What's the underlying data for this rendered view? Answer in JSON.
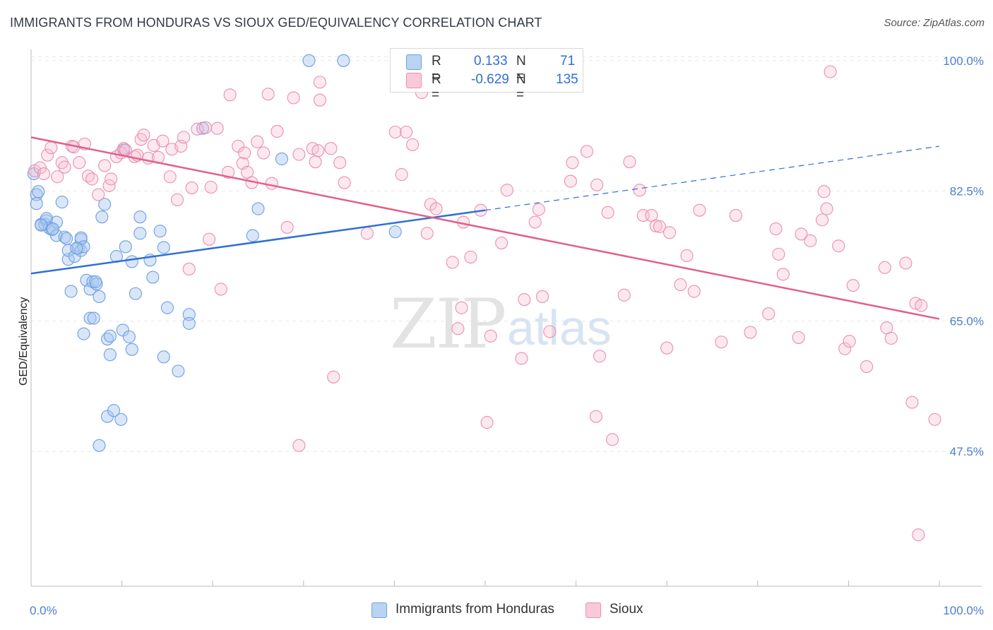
{
  "header": {
    "title": "IMMIGRANTS FROM HONDURAS VS SIOUX GED/EQUIVALENCY CORRELATION CHART",
    "source": "Source: ZipAtlas.com"
  },
  "watermark": {
    "zip": "ZIP",
    "atlas": "atlas"
  },
  "legend": {
    "r_label": "R =",
    "n_label": "N =",
    "rows": [
      {
        "name": "Immigrants from Honduras",
        "r": "0.133",
        "n": "71",
        "color": "#a9c8ef",
        "stroke": "#6f9fe0"
      },
      {
        "name": "Sioux",
        "r": "-0.629",
        "n": "135",
        "color": "#f7bcd0",
        "stroke": "#ea8fb0"
      }
    ]
  },
  "chart_data": {
    "type": "scatter",
    "title": "IMMIGRANTS FROM HONDURAS VS SIOUX GED/EQUIVALENCY CORRELATION CHART",
    "xlabel": "",
    "ylabel": "GED/Equivalency",
    "xlim": [
      0,
      100
    ],
    "ylim": [
      29.4,
      101.5
    ],
    "x_tick_labels": [
      "0.0%",
      "100.0%"
    ],
    "y_ticks": [
      47.5,
      65.0,
      82.5,
      100.0
    ],
    "y_tick_labels": [
      "47.5%",
      "65.0%",
      "82.5%",
      "100.0%"
    ],
    "grid": true,
    "series": [
      {
        "name": "Immigrants from Honduras",
        "color": "#a9c8ef",
        "line_color": "#2f6fd6",
        "trend": {
          "x0": 0,
          "y0": 71.4,
          "x1": 50,
          "y1": 79.9,
          "dash_to_x": 100,
          "dash_to_y": 88.5
        },
        "points": [
          [
            0.3,
            84.8
          ],
          [
            0.6,
            82.0
          ],
          [
            0.6,
            80.8
          ],
          [
            1.1,
            78.0
          ],
          [
            1.5,
            78.0
          ],
          [
            1.7,
            78.5
          ],
          [
            1.7,
            78.8
          ],
          [
            2.0,
            77.5
          ],
          [
            2.3,
            77.3
          ],
          [
            2.8,
            78.3
          ],
          [
            2.8,
            76.5
          ],
          [
            3.4,
            81.0
          ],
          [
            3.7,
            76.3
          ],
          [
            4.1,
            73.3
          ],
          [
            4.1,
            74.5
          ],
          [
            4.4,
            69.0
          ],
          [
            4.8,
            73.7
          ],
          [
            5.2,
            74.8
          ],
          [
            5.5,
            76.0
          ],
          [
            5.5,
            74.5
          ],
          [
            5.5,
            76.2
          ],
          [
            5.8,
            75.0
          ],
          [
            5.8,
            63.3
          ],
          [
            6.1,
            70.5
          ],
          [
            6.5,
            65.4
          ],
          [
            6.5,
            69.3
          ],
          [
            6.8,
            70.3
          ],
          [
            6.9,
            65.4
          ],
          [
            7.2,
            70.0
          ],
          [
            7.5,
            68.3
          ],
          [
            7.5,
            48.3
          ],
          [
            7.8,
            79.0
          ],
          [
            8.1,
            80.7
          ],
          [
            8.4,
            62.6
          ],
          [
            8.4,
            52.2
          ],
          [
            8.7,
            60.5
          ],
          [
            8.7,
            63.0
          ],
          [
            9.1,
            53.0
          ],
          [
            9.4,
            73.7
          ],
          [
            9.9,
            51.8
          ],
          [
            10.1,
            63.8
          ],
          [
            10.4,
            75.0
          ],
          [
            10.8,
            62.9
          ],
          [
            11.1,
            73.0
          ],
          [
            11.1,
            61.2
          ],
          [
            11.5,
            68.7
          ],
          [
            12.0,
            79.0
          ],
          [
            12.0,
            76.8
          ],
          [
            13.1,
            73.2
          ],
          [
            13.4,
            70.9
          ],
          [
            14.2,
            77.1
          ],
          [
            14.6,
            60.2
          ],
          [
            14.6,
            74.9
          ],
          [
            15.0,
            66.8
          ],
          [
            16.2,
            58.3
          ],
          [
            17.4,
            65.9
          ],
          [
            17.4,
            64.7
          ],
          [
            18.9,
            90.9
          ],
          [
            24.4,
            76.5
          ],
          [
            25.0,
            80.1
          ],
          [
            27.6,
            86.8
          ],
          [
            30.6,
            100.0
          ],
          [
            34.4,
            100.0
          ],
          [
            40.1,
            77.0
          ],
          [
            10.2,
            88.0
          ],
          [
            0.8,
            82.4
          ],
          [
            1.1,
            77.9
          ],
          [
            2.4,
            77.4
          ],
          [
            3.9,
            76.1
          ],
          [
            5.0,
            74.8
          ],
          [
            7.1,
            70.3
          ]
        ]
      },
      {
        "name": "Sioux",
        "color": "#f7bcd0",
        "line_color": "#e0608f",
        "trend": {
          "x0": 0,
          "y0": 89.7,
          "x1": 100,
          "y1": 65.3
        },
        "points": [
          [
            0.4,
            85.2
          ],
          [
            1.0,
            85.6
          ],
          [
            1.4,
            84.8
          ],
          [
            1.8,
            87.3
          ],
          [
            2.2,
            88.3
          ],
          [
            2.9,
            84.4
          ],
          [
            3.4,
            86.3
          ],
          [
            3.7,
            85.7
          ],
          [
            4.5,
            88.5
          ],
          [
            4.7,
            88.4
          ],
          [
            5.3,
            86.3
          ],
          [
            5.9,
            88.8
          ],
          [
            6.3,
            84.5
          ],
          [
            6.7,
            84.1
          ],
          [
            7.4,
            82.0
          ],
          [
            8.1,
            85.9
          ],
          [
            8.6,
            83.2
          ],
          [
            8.8,
            84.1
          ],
          [
            9.4,
            87.1
          ],
          [
            9.9,
            87.6
          ],
          [
            10.2,
            88.2
          ],
          [
            10.4,
            88.0
          ],
          [
            11.4,
            87.1
          ],
          [
            11.7,
            87.3
          ],
          [
            12.1,
            89.4
          ],
          [
            12.4,
            90.0
          ],
          [
            12.9,
            86.9
          ],
          [
            13.5,
            88.6
          ],
          [
            14.0,
            87.0
          ],
          [
            14.5,
            89.2
          ],
          [
            15.3,
            84.4
          ],
          [
            15.5,
            88.1
          ],
          [
            16.1,
            81.3
          ],
          [
            16.5,
            88.5
          ],
          [
            16.8,
            89.7
          ],
          [
            17.4,
            72.0
          ],
          [
            17.7,
            82.9
          ],
          [
            18.3,
            90.8
          ],
          [
            19.2,
            91.0
          ],
          [
            19.6,
            76.0
          ],
          [
            19.8,
            83.0
          ],
          [
            20.5,
            90.9
          ],
          [
            20.9,
            69.3
          ],
          [
            21.7,
            85.0
          ],
          [
            21.9,
            95.4
          ],
          [
            22.8,
            88.5
          ],
          [
            23.3,
            86.2
          ],
          [
            23.5,
            87.6
          ],
          [
            23.8,
            85.0
          ],
          [
            24.3,
            83.6
          ],
          [
            24.9,
            89.1
          ],
          [
            25.6,
            87.6
          ],
          [
            26.1,
            95.5
          ],
          [
            26.5,
            83.5
          ],
          [
            27.1,
            90.5
          ],
          [
            28.2,
            77.6
          ],
          [
            28.9,
            95.0
          ],
          [
            29.5,
            87.4
          ],
          [
            29.5,
            48.3
          ],
          [
            31.0,
            88.2
          ],
          [
            31.3,
            86.4
          ],
          [
            31.6,
            87.9
          ],
          [
            31.8,
            94.7
          ],
          [
            31.8,
            97.1
          ],
          [
            33.0,
            88.2
          ],
          [
            33.3,
            57.5
          ],
          [
            34.0,
            86.3
          ],
          [
            34.5,
            83.6
          ],
          [
            37.0,
            76.8
          ],
          [
            40.1,
            90.4
          ],
          [
            40.8,
            84.7
          ],
          [
            41.3,
            90.4
          ],
          [
            42.0,
            88.7
          ],
          [
            43.0,
            95.7
          ],
          [
            43.6,
            76.8
          ],
          [
            44.0,
            80.7
          ],
          [
            44.6,
            80.1
          ],
          [
            46.4,
            72.9
          ],
          [
            47.0,
            64.0
          ],
          [
            47.4,
            66.8
          ],
          [
            47.6,
            78.3
          ],
          [
            48.4,
            73.6
          ],
          [
            49.5,
            79.9
          ],
          [
            50.6,
            63.0
          ],
          [
            51.8,
            75.5
          ],
          [
            52.4,
            82.6
          ],
          [
            54.0,
            60.0
          ],
          [
            54.3,
            67.9
          ],
          [
            55.5,
            78.3
          ],
          [
            55.9,
            80.0
          ],
          [
            56.3,
            68.3
          ],
          [
            57.1,
            63.6
          ],
          [
            59.4,
            83.8
          ],
          [
            59.6,
            86.3
          ],
          [
            61.2,
            87.8
          ],
          [
            62.2,
            52.2
          ],
          [
            62.3,
            83.3
          ],
          [
            63.5,
            79.6
          ],
          [
            64.0,
            49.1
          ],
          [
            65.3,
            68.5
          ],
          [
            65.9,
            86.4
          ],
          [
            67.0,
            82.6
          ],
          [
            67.4,
            79.2
          ],
          [
            68.3,
            79.2
          ],
          [
            68.8,
            77.8
          ],
          [
            69.2,
            77.7
          ],
          [
            70.0,
            61.4
          ],
          [
            70.3,
            76.9
          ],
          [
            71.5,
            69.9
          ],
          [
            72.2,
            73.8
          ],
          [
            73.0,
            69.0
          ],
          [
            76.0,
            62.2
          ],
          [
            77.6,
            79.2
          ],
          [
            79.2,
            63.5
          ],
          [
            81.2,
            66.0
          ],
          [
            82.0,
            77.4
          ],
          [
            82.3,
            74.0
          ],
          [
            82.8,
            71.3
          ],
          [
            84.5,
            62.8
          ],
          [
            84.8,
            76.7
          ],
          [
            85.8,
            75.8
          ],
          [
            87.1,
            78.6
          ],
          [
            87.3,
            82.4
          ],
          [
            87.6,
            80.1
          ],
          [
            88.9,
            75.1
          ],
          [
            89.6,
            61.3
          ],
          [
            90.1,
            62.3
          ],
          [
            90.5,
            69.8
          ],
          [
            92.0,
            58.9
          ],
          [
            94.0,
            72.2
          ],
          [
            94.2,
            64.1
          ],
          [
            94.7,
            62.7
          ],
          [
            96.3,
            72.8
          ],
          [
            97.0,
            54.1
          ],
          [
            97.4,
            67.4
          ],
          [
            97.7,
            36.3
          ],
          [
            98.0,
            67.1
          ],
          [
            99.5,
            51.8
          ],
          [
            88.0,
            98.5
          ],
          [
            73.6,
            79.9
          ],
          [
            50.2,
            51.4
          ],
          [
            62.6,
            60.3
          ]
        ]
      }
    ]
  },
  "bottom_legend": [
    "Immigrants from Honduras",
    "Sioux"
  ]
}
